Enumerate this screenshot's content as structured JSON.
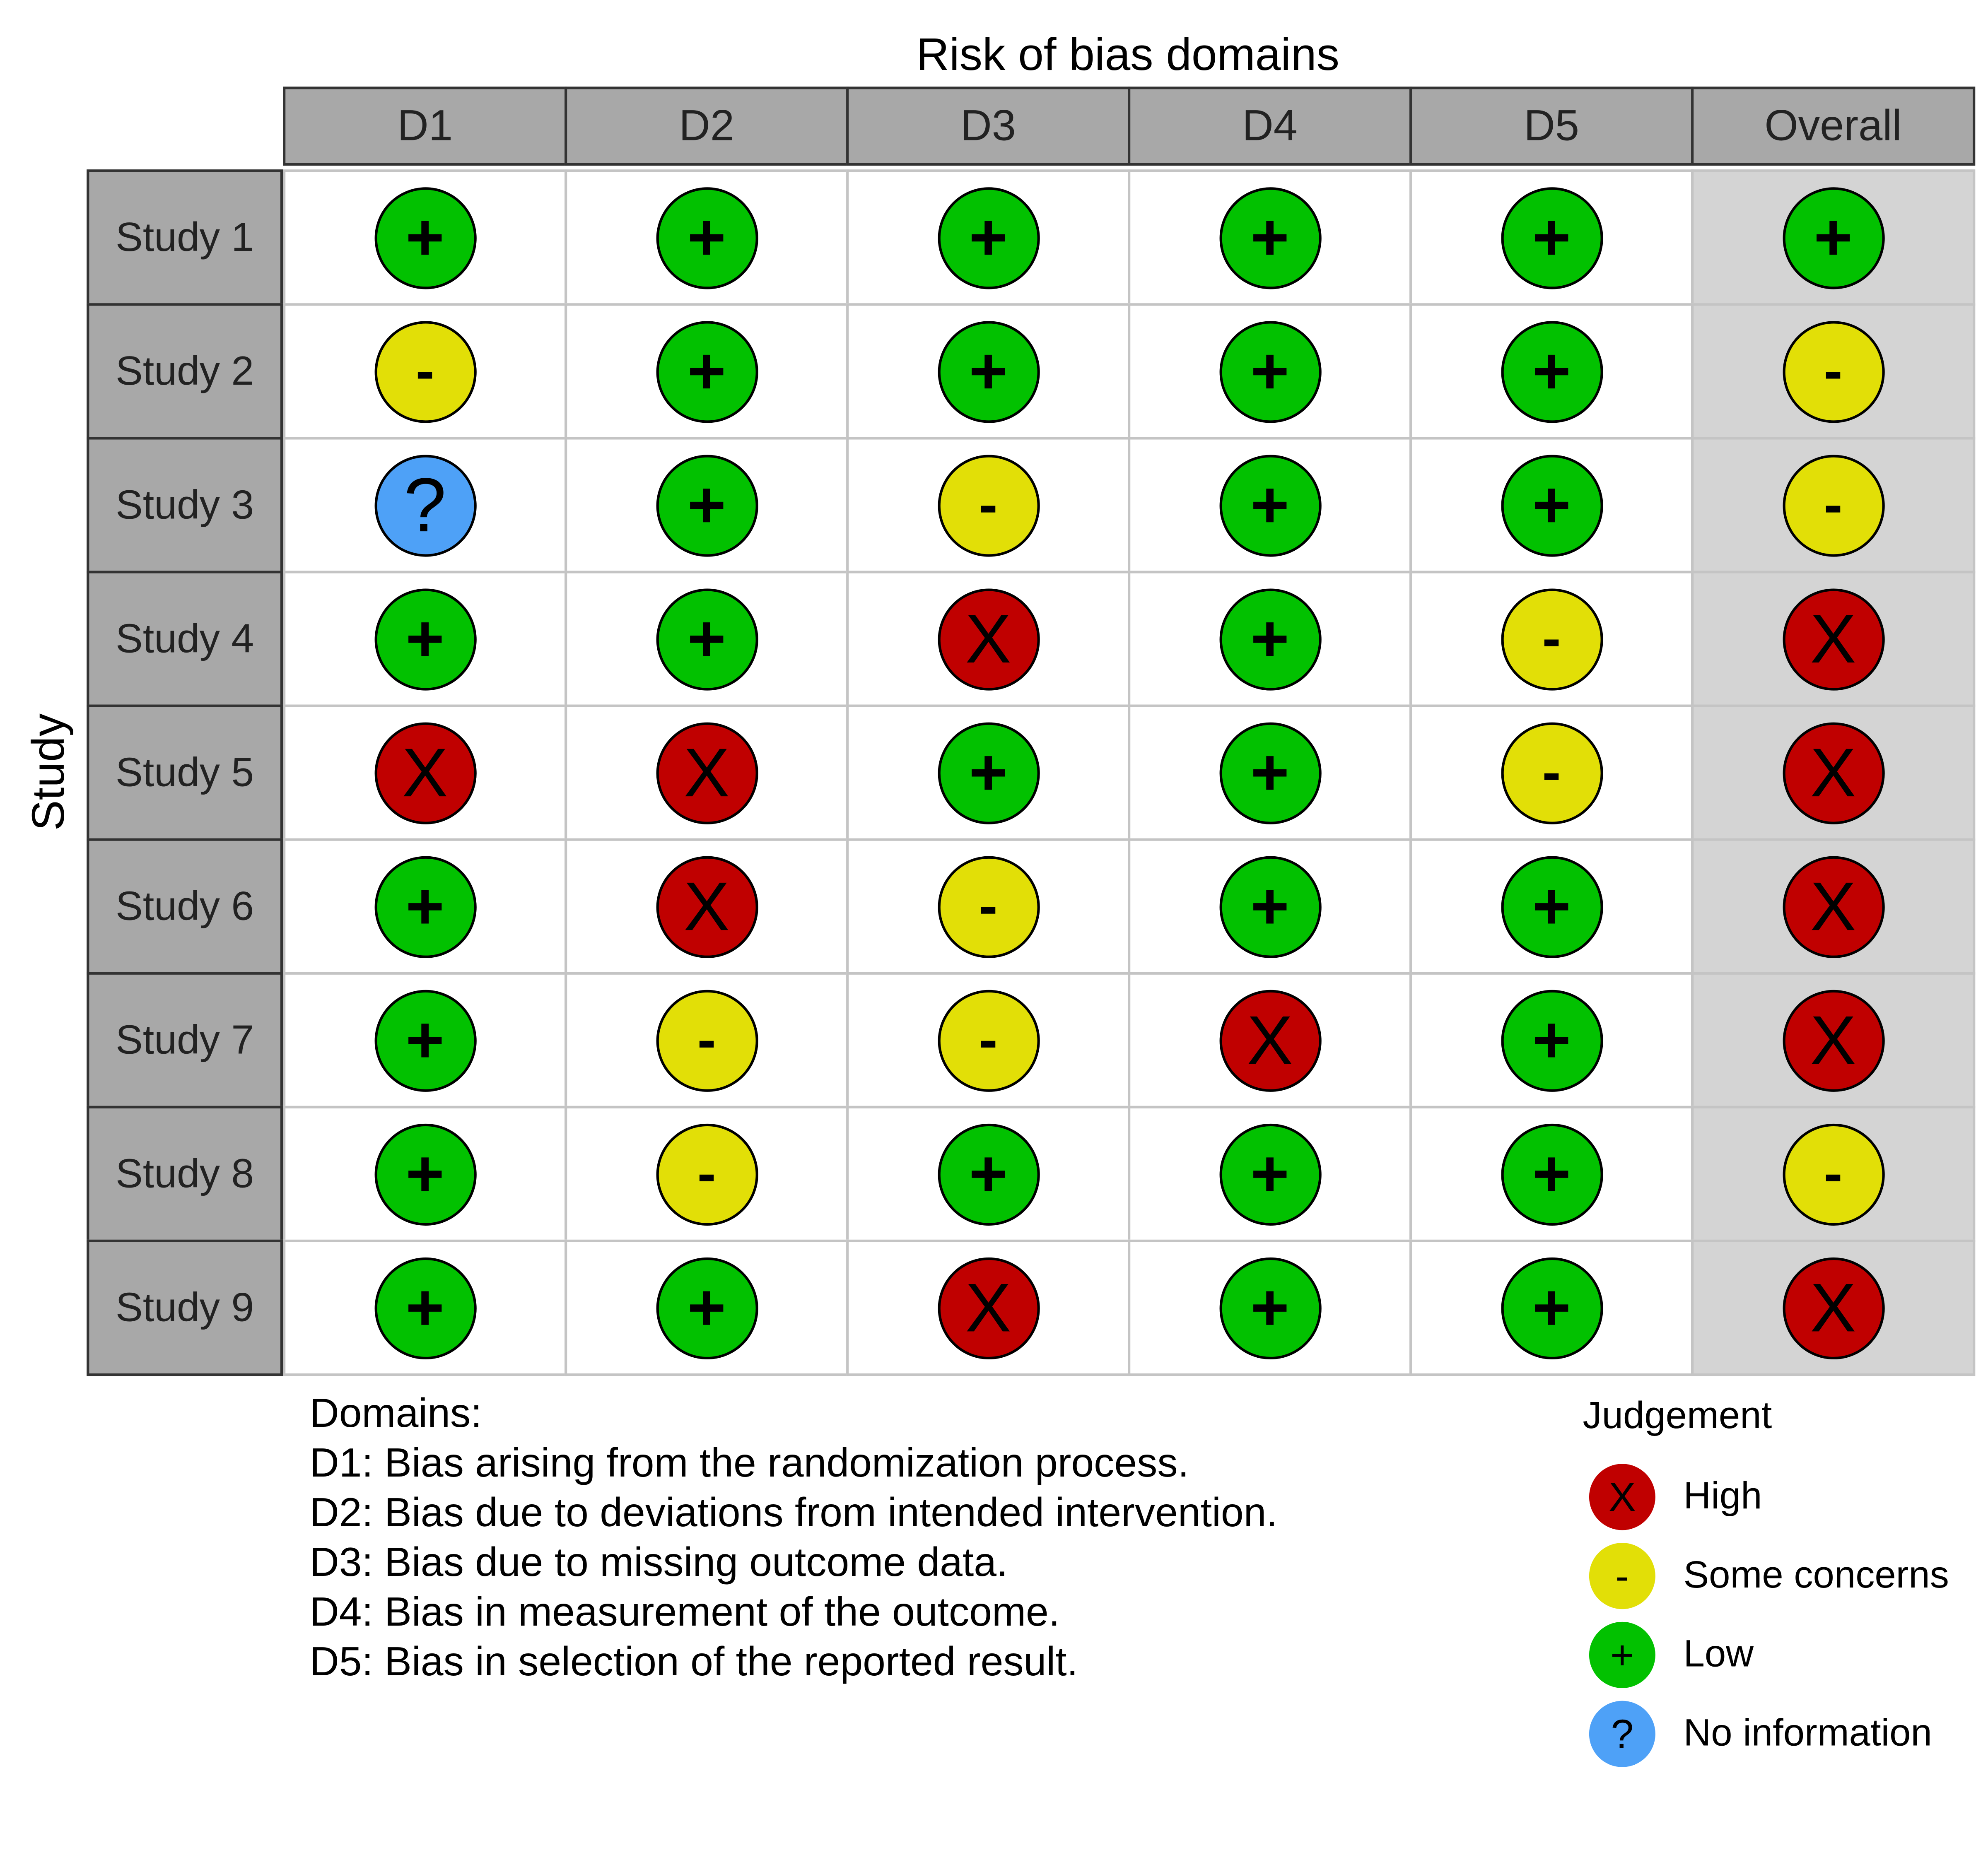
{
  "chart_data": {
    "type": "table",
    "title": "Risk of bias domains",
    "ylabel": "Study",
    "columns": [
      "D1",
      "D2",
      "D3",
      "D4",
      "D5",
      "Overall"
    ],
    "rows": [
      {
        "study": "Study 1",
        "judgements": [
          "Low",
          "Low",
          "Low",
          "Low",
          "Low",
          "Low"
        ]
      },
      {
        "study": "Study 2",
        "judgements": [
          "Some concerns",
          "Low",
          "Low",
          "Low",
          "Low",
          "Some concerns"
        ]
      },
      {
        "study": "Study 3",
        "judgements": [
          "No information",
          "Low",
          "Some concerns",
          "Low",
          "Low",
          "Some concerns"
        ]
      },
      {
        "study": "Study 4",
        "judgements": [
          "Low",
          "Low",
          "High",
          "Low",
          "Some concerns",
          "High"
        ]
      },
      {
        "study": "Study 5",
        "judgements": [
          "High",
          "High",
          "Low",
          "Low",
          "Some concerns",
          "High"
        ]
      },
      {
        "study": "Study 6",
        "judgements": [
          "Low",
          "High",
          "Some concerns",
          "Low",
          "Low",
          "High"
        ]
      },
      {
        "study": "Study 7",
        "judgements": [
          "Low",
          "Some concerns",
          "Some concerns",
          "High",
          "Low",
          "High"
        ]
      },
      {
        "study": "Study 8",
        "judgements": [
          "Low",
          "Some concerns",
          "Low",
          "Low",
          "Low",
          "Some concerns"
        ]
      },
      {
        "study": "Study 9",
        "judgements": [
          "Low",
          "Low",
          "High",
          "Low",
          "Low",
          "High"
        ]
      }
    ],
    "legend": {
      "title": "Judgement",
      "items": [
        {
          "label": "High",
          "symbol": "X",
          "color": "#c00000"
        },
        {
          "label": "Some concerns",
          "symbol": "-",
          "color": "#e2df07"
        },
        {
          "label": "Low",
          "symbol": "+",
          "color": "#02c100"
        },
        {
          "label": "No information",
          "symbol": "?",
          "color": "#4ea1f7"
        }
      ]
    },
    "domains_title": "Domains:",
    "domains": [
      "D1: Bias arising from the randomization process.",
      "D2: Bias due to deviations from intended intervention.",
      "D3: Bias due to missing outcome data.",
      "D4: Bias in measurement of the outcome.",
      "D5: Bias in selection of the reported result."
    ]
  }
}
